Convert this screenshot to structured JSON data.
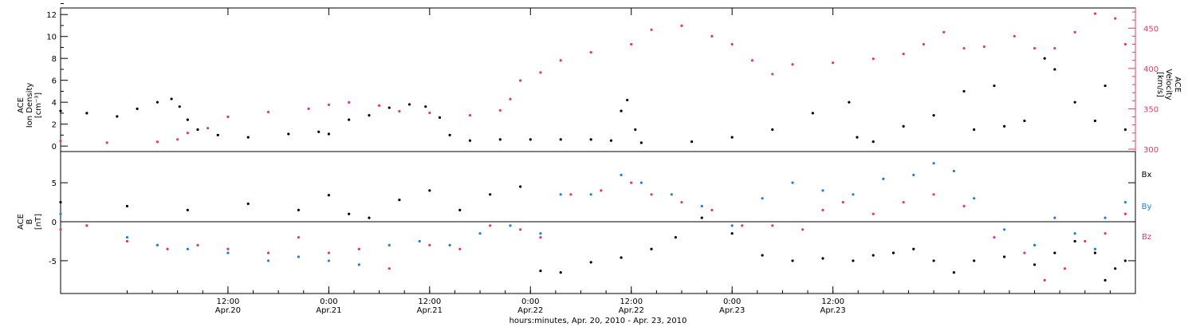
{
  "chart_data": [
    {
      "type": "scatter",
      "panel": "top",
      "ylabel_lines": [
        "ACE",
        "Ion Density",
        "[cm⁻³]"
      ],
      "y2label_lines": [
        "ACE",
        "Velocity",
        "[km/s]"
      ],
      "ylim": [
        -0.5,
        12.6
      ],
      "yticks": [
        0,
        2,
        4,
        6,
        8,
        10,
        12
      ],
      "y2lim": [
        297,
        475
      ],
      "y2ticks": [
        300,
        350,
        400,
        450
      ],
      "grid": false,
      "colors": {
        "density": "#000000",
        "velocity": "#e8386a"
      },
      "series": [
        {
          "axis": "left",
          "points": [
            [
              -0.33,
              3.2
            ],
            [
              -0.2,
              3.0
            ],
            [
              -0.05,
              2.7
            ],
            [
              0.05,
              3.4
            ],
            [
              0.15,
              4.0
            ],
            [
              0.22,
              4.3
            ],
            [
              0.26,
              3.6
            ],
            [
              0.3,
              2.4
            ],
            [
              0.35,
              1.5
            ],
            [
              0.45,
              1.0
            ],
            [
              0.6,
              0.8
            ],
            [
              0.8,
              1.1
            ],
            [
              0.95,
              1.3
            ],
            [
              1.0,
              1.1
            ],
            [
              1.1,
              2.4
            ],
            [
              1.2,
              2.8
            ],
            [
              1.3,
              3.5
            ],
            [
              1.4,
              3.8
            ],
            [
              1.48,
              3.6
            ],
            [
              1.55,
              2.6
            ],
            [
              1.6,
              1.0
            ],
            [
              1.7,
              0.5
            ],
            [
              1.85,
              0.6
            ],
            [
              2.0,
              0.6
            ],
            [
              2.15,
              0.6
            ],
            [
              2.3,
              0.6
            ],
            [
              2.4,
              0.5
            ],
            [
              2.45,
              3.2
            ],
            [
              2.48,
              4.2
            ],
            [
              2.52,
              1.5
            ],
            [
              2.55,
              0.3
            ],
            [
              2.8,
              0.4
            ],
            [
              3.0,
              0.8
            ],
            [
              3.2,
              1.5
            ],
            [
              3.4,
              3.0
            ],
            [
              3.58,
              4.0
            ],
            [
              3.62,
              0.8
            ],
            [
              3.7,
              0.4
            ],
            [
              3.85,
              1.8
            ],
            [
              4.0,
              2.8
            ],
            [
              4.15,
              5.0
            ],
            [
              4.2,
              1.5
            ],
            [
              4.3,
              5.5
            ],
            [
              4.35,
              1.8
            ],
            [
              4.45,
              2.3
            ],
            [
              4.55,
              8.0
            ],
            [
              4.6,
              7.0
            ],
            [
              4.7,
              4.0
            ],
            [
              4.8,
              2.3
            ],
            [
              4.85,
              5.5
            ],
            [
              4.95,
              1.5
            ]
          ]
        },
        {
          "axis": "right",
          "points": [
            [
              -0.33,
              310
            ],
            [
              -0.1,
              308
            ],
            [
              0.15,
              309
            ],
            [
              0.25,
              312
            ],
            [
              0.3,
              320
            ],
            [
              0.4,
              326
            ],
            [
              0.5,
              340
            ],
            [
              0.7,
              346
            ],
            [
              0.9,
              350
            ],
            [
              1.0,
              355
            ],
            [
              1.1,
              358
            ],
            [
              1.25,
              354
            ],
            [
              1.35,
              347
            ],
            [
              1.5,
              345
            ],
            [
              1.7,
              342
            ],
            [
              1.85,
              348
            ],
            [
              1.9,
              362
            ],
            [
              1.95,
              385
            ],
            [
              2.05,
              395
            ],
            [
              2.15,
              410
            ],
            [
              2.3,
              420
            ],
            [
              2.5,
              430
            ],
            [
              2.6,
              448
            ],
            [
              2.75,
              453
            ],
            [
              2.9,
              440
            ],
            [
              3.0,
              430
            ],
            [
              3.1,
              410
            ],
            [
              3.2,
              393
            ],
            [
              3.3,
              405
            ],
            [
              3.5,
              407
            ],
            [
              3.7,
              412
            ],
            [
              3.85,
              418
            ],
            [
              3.95,
              430
            ],
            [
              4.05,
              445
            ],
            [
              4.15,
              425
            ],
            [
              4.25,
              427
            ],
            [
              4.4,
              440
            ],
            [
              4.5,
              425
            ],
            [
              4.6,
              425
            ],
            [
              4.7,
              445
            ],
            [
              4.8,
              468
            ],
            [
              4.9,
              462
            ],
            [
              4.95,
              430
            ]
          ]
        }
      ]
    },
    {
      "type": "scatter",
      "panel": "bottom",
      "ylabel_lines": [
        "ACE",
        "B",
        "[nT]"
      ],
      "ylim": [
        -9.2,
        9.0
      ],
      "yticks": [
        -5,
        0,
        5
      ],
      "zero_line": true,
      "grid": false,
      "legend_position": "right",
      "series": [
        {
          "label": "Bx",
          "color": "#000000",
          "points": [
            [
              -0.33,
              2.5
            ],
            [
              0.0,
              2.0
            ],
            [
              0.3,
              1.5
            ],
            [
              0.6,
              2.3
            ],
            [
              0.85,
              1.5
            ],
            [
              1.0,
              3.4
            ],
            [
              1.1,
              1.0
            ],
            [
              1.2,
              0.5
            ],
            [
              1.35,
              2.8
            ],
            [
              1.5,
              4.0
            ],
            [
              1.65,
              1.5
            ],
            [
              1.8,
              3.5
            ],
            [
              1.95,
              4.5
            ],
            [
              2.05,
              -6.3
            ],
            [
              2.15,
              -6.5
            ],
            [
              2.3,
              -5.2
            ],
            [
              2.45,
              -4.6
            ],
            [
              2.6,
              -3.5
            ],
            [
              2.72,
              -2.0
            ],
            [
              2.85,
              0.5
            ],
            [
              3.0,
              -1.5
            ],
            [
              3.15,
              -4.3
            ],
            [
              3.3,
              -5.0
            ],
            [
              3.45,
              -4.7
            ],
            [
              3.6,
              -5.0
            ],
            [
              3.7,
              -4.3
            ],
            [
              3.8,
              -4.0
            ],
            [
              3.9,
              -3.5
            ],
            [
              4.0,
              -5.0
            ],
            [
              4.1,
              -6.5
            ],
            [
              4.2,
              -5.0
            ],
            [
              4.35,
              -4.5
            ],
            [
              4.5,
              -5.5
            ],
            [
              4.6,
              -4.0
            ],
            [
              4.7,
              -2.5
            ],
            [
              4.8,
              -4.0
            ],
            [
              4.85,
              -7.5
            ],
            [
              4.9,
              -6.0
            ],
            [
              4.95,
              -5.0
            ]
          ]
        },
        {
          "label": "By",
          "color": "#1f7fd8",
          "points": [
            [
              -0.33,
              1.0
            ],
            [
              -0.2,
              -0.5
            ],
            [
              0.0,
              -2.0
            ],
            [
              0.15,
              -3.0
            ],
            [
              0.3,
              -3.5
            ],
            [
              0.5,
              -4.0
            ],
            [
              0.7,
              -5.0
            ],
            [
              0.85,
              -4.5
            ],
            [
              1.0,
              -5.0
            ],
            [
              1.15,
              -5.5
            ],
            [
              1.3,
              -3.0
            ],
            [
              1.45,
              -2.5
            ],
            [
              1.6,
              -3.0
            ],
            [
              1.75,
              -1.5
            ],
            [
              1.9,
              -0.5
            ],
            [
              2.05,
              -1.5
            ],
            [
              2.15,
              3.5
            ],
            [
              2.3,
              3.5
            ],
            [
              2.45,
              6.0
            ],
            [
              2.55,
              5.0
            ],
            [
              2.7,
              3.5
            ],
            [
              2.85,
              2.0
            ],
            [
              3.0,
              -0.5
            ],
            [
              3.15,
              3.0
            ],
            [
              3.3,
              5.0
            ],
            [
              3.45,
              4.0
            ],
            [
              3.6,
              3.5
            ],
            [
              3.75,
              5.5
            ],
            [
              3.9,
              6.0
            ],
            [
              4.0,
              7.5
            ],
            [
              4.1,
              6.5
            ],
            [
              4.2,
              3.0
            ],
            [
              4.35,
              -1.0
            ],
            [
              4.5,
              -3.0
            ],
            [
              4.6,
              0.5
            ],
            [
              4.7,
              -1.5
            ],
            [
              4.8,
              -3.5
            ],
            [
              4.85,
              0.5
            ],
            [
              4.95,
              2.5
            ]
          ]
        },
        {
          "label": "Bz",
          "color": "#e8386a",
          "points": [
            [
              -0.33,
              -1.0
            ],
            [
              -0.2,
              -0.5
            ],
            [
              0.0,
              -2.5
            ],
            [
              0.2,
              -3.5
            ],
            [
              0.35,
              -3.0
            ],
            [
              0.5,
              -3.5
            ],
            [
              0.7,
              -4.0
            ],
            [
              0.85,
              -2.0
            ],
            [
              1.0,
              -4.0
            ],
            [
              1.15,
              -3.5
            ],
            [
              1.3,
              -6.0
            ],
            [
              1.5,
              -3.0
            ],
            [
              1.65,
              -3.5
            ],
            [
              1.8,
              -0.5
            ],
            [
              1.95,
              -1.0
            ],
            [
              2.05,
              -2.0
            ],
            [
              2.2,
              3.5
            ],
            [
              2.35,
              4.0
            ],
            [
              2.5,
              5.0
            ],
            [
              2.6,
              3.5
            ],
            [
              2.75,
              2.5
            ],
            [
              2.9,
              1.5
            ],
            [
              3.05,
              -0.5
            ],
            [
              3.2,
              -0.5
            ],
            [
              3.35,
              -1.0
            ],
            [
              3.45,
              1.5
            ],
            [
              3.55,
              2.5
            ],
            [
              3.7,
              1.0
            ],
            [
              3.85,
              2.5
            ],
            [
              4.0,
              3.5
            ],
            [
              4.15,
              2.0
            ],
            [
              4.3,
              -2.0
            ],
            [
              4.45,
              -4.0
            ],
            [
              4.55,
              -7.5
            ],
            [
              4.65,
              -6.0
            ],
            [
              4.75,
              -2.5
            ],
            [
              4.85,
              -1.5
            ],
            [
              4.95,
              1.0
            ]
          ]
        }
      ]
    }
  ],
  "x_axis": {
    "xlim": [
      -0.33,
      5.0
    ],
    "major_ticks": [
      {
        "x": 0.5,
        "time": "12:00",
        "date": "Apr.20"
      },
      {
        "x": 1.0,
        "time": "0:00",
        "date": "Apr.21"
      },
      {
        "x": 1.5,
        "time": "12:00",
        "date": "Apr.21"
      },
      {
        "x": 2.0,
        "time": "0:00",
        "date": "Apr.22"
      },
      {
        "x": 2.5,
        "time": "12:00",
        "date": "Apr.22"
      },
      {
        "x": 3.0,
        "time": "0:00",
        "date": "Apr.23"
      },
      {
        "x": 3.5,
        "time": "12:00",
        "date": "Apr.23"
      }
    ],
    "xlabel": "hours:minutes, Apr. 20, 2010 - Apr. 23, 2010"
  }
}
